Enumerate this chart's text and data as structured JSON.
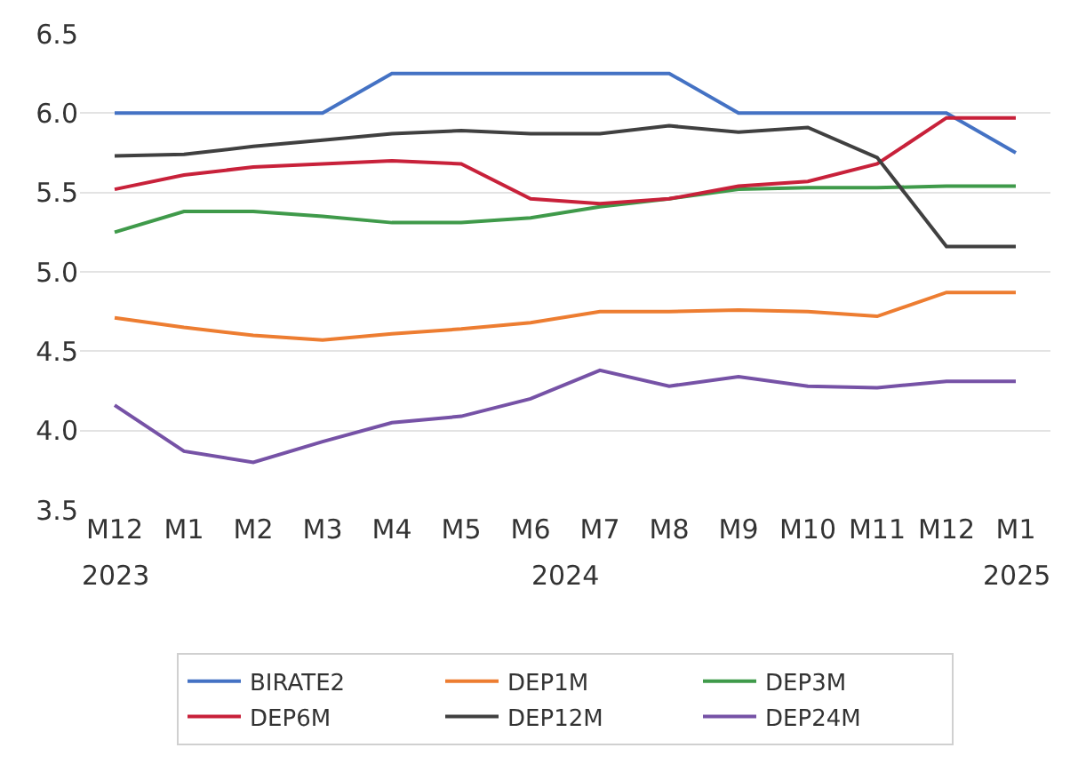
{
  "chart_data": {
    "type": "line",
    "categories": [
      "M12",
      "M1",
      "M2",
      "M3",
      "M4",
      "M5",
      "M6",
      "M7",
      "M8",
      "M9",
      "M10",
      "M11",
      "M12",
      "M1"
    ],
    "annotations": [
      "2023",
      "2024",
      "2025"
    ],
    "ylim": [
      3.5,
      6.5
    ],
    "yticks": [
      {
        "value": 3.5,
        "label": "3.5"
      },
      {
        "value": 4,
        "label": "4.0"
      },
      {
        "value": 4.5,
        "label": "4.5"
      },
      {
        "value": 5,
        "label": "5.0"
      },
      {
        "value": 5.5,
        "label": "5.5"
      },
      {
        "value": 6,
        "label": "6.0"
      },
      {
        "value": 6.5,
        "label": "6.5"
      }
    ],
    "grid": "y",
    "legend": "bottom",
    "marker": "none",
    "line_style": "solid",
    "series": [
      {
        "name": "BIRATE2",
        "color": "#4472c4",
        "values": [
          6,
          6,
          6,
          6,
          6.25,
          6.25,
          6.25,
          6.25,
          6.25,
          6,
          6,
          6,
          6,
          5.75
        ]
      },
      {
        "name": "DEP1M",
        "color": "#ed7d31",
        "values": [
          4.71,
          4.65,
          4.6,
          4.57,
          4.61,
          4.64,
          4.68,
          4.75,
          4.75,
          4.76,
          4.75,
          4.72,
          4.87,
          4.87
        ]
      },
      {
        "name": "DEP3M",
        "color": "#3f9a4a",
        "values": [
          5.25,
          5.38,
          5.38,
          5.35,
          5.31,
          5.31,
          5.34,
          5.41,
          5.46,
          5.52,
          5.53,
          5.53,
          5.54,
          5.54
        ]
      },
      {
        "name": "DEP6M",
        "color": "#c8213a",
        "values": [
          5.52,
          5.61,
          5.66,
          5.68,
          5.7,
          5.68,
          5.46,
          5.43,
          5.46,
          5.54,
          5.57,
          5.68,
          5.97,
          5.97
        ]
      },
      {
        "name": "DEP12M",
        "color": "#404040",
        "values": [
          5.73,
          5.74,
          5.79,
          5.83,
          5.87,
          5.89,
          5.87,
          5.87,
          5.92,
          5.88,
          5.91,
          5.72,
          5.16,
          5.16
        ]
      },
      {
        "name": "DEP24M",
        "color": "#7652a6",
        "values": [
          4.16,
          3.87,
          3.8,
          3.93,
          4.05,
          4.09,
          4.2,
          4.38,
          4.28,
          4.34,
          4.28,
          4.27,
          4.31,
          4.31
        ]
      }
    ]
  }
}
